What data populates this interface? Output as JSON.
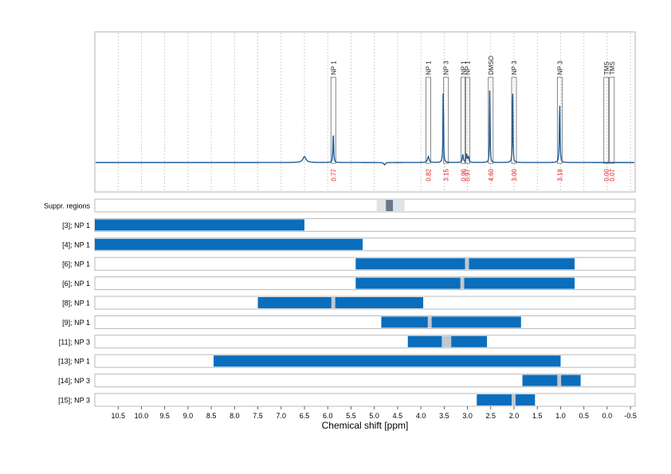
{
  "chart_data": {
    "type": "nmr-spectrum",
    "xlabel": "Chemical shift [ppm]",
    "xlim": [
      11.0,
      -0.6
    ],
    "x_ticks": [
      "10.5",
      "10.0",
      "9.5",
      "9.0",
      "8.5",
      "8.0",
      "7.5",
      "7.0",
      "6.5",
      "6.0",
      "5.5",
      "5.0",
      "4.5",
      "4.0",
      "3.5",
      "3.0",
      "2.5",
      "2.0",
      "1.5",
      "1.0",
      "0.5",
      "0.0",
      "-0.5"
    ],
    "colors": {
      "spectrum": "#1f5f99",
      "bar": "#0a6ebd",
      "integral_label": "#e8191a",
      "gap": "#c0c8d0",
      "grid": "#c8c8c8"
    },
    "spectrum_peaks": [
      {
        "x": 6.5,
        "h": 0.05,
        "w": 0.04
      },
      {
        "x": 5.88,
        "h": 0.28,
        "w": 0.008
      },
      {
        "x": 3.84,
        "h": 0.05,
        "w": 0.02
      },
      {
        "x": 3.52,
        "h": 0.75,
        "w": 0.006
      },
      {
        "x": 3.1,
        "h": 0.07,
        "w": 0.012
      },
      {
        "x": 3.02,
        "h": 0.07,
        "w": 0.012
      },
      {
        "x": 2.98,
        "h": 0.05,
        "w": 0.012
      },
      {
        "x": 2.52,
        "h": 0.7,
        "w": 0.006
      },
      {
        "x": 2.03,
        "h": 0.8,
        "w": 0.006
      },
      {
        "x": 1.02,
        "h": 0.55,
        "w": 0.008
      },
      {
        "x": 4.78,
        "h": -0.02,
        "w": 0.02
      }
    ],
    "peak_annotations": [
      {
        "label": "NP 1",
        "x": 5.88,
        "integral": "0.77"
      },
      {
        "label": "NP 1",
        "x": 3.84,
        "integral": "0.82"
      },
      {
        "label": "NP 3",
        "x": 3.46,
        "integral": "3.15"
      },
      {
        "label": "NP 1",
        "x": 3.09,
        "integral": "0.96"
      },
      {
        "label": "NP 1",
        "x": 3.0,
        "integral": "0.97"
      },
      {
        "label": "DMSO",
        "x": 2.5,
        "integral": "4.60"
      },
      {
        "label": "NP 3",
        "x": 2.0,
        "integral": "3.00"
      },
      {
        "label": "NP 3",
        "x": 1.02,
        "integral": "3.18"
      },
      {
        "label": "TMS",
        "x": 0.02,
        "integral": "0.00"
      },
      {
        "label": "TMS",
        "x": -0.1,
        "integral": "0.07"
      }
    ],
    "suppression": {
      "label": "Suppr. regions",
      "outer": [
        4.95,
        4.35
      ],
      "inner": [
        4.75,
        4.6
      ]
    },
    "rows": [
      {
        "label": "[3]; NP 1",
        "segments": [
          [
            11.0,
            6.5
          ]
        ]
      },
      {
        "label": "[4]; NP 1",
        "segments": [
          [
            11.0,
            5.25
          ]
        ]
      },
      {
        "label": "[6]; NP 1",
        "segments": [
          [
            5.4,
            3.05
          ],
          [
            2.97,
            0.7
          ]
        ]
      },
      {
        "label": "[6]; NP 1",
        "segments": [
          [
            5.4,
            3.15
          ],
          [
            3.07,
            0.7
          ]
        ]
      },
      {
        "label": "[8]; NP 1",
        "segments": [
          [
            7.5,
            5.92
          ],
          [
            5.84,
            3.95
          ]
        ]
      },
      {
        "label": "[9]; NP 1",
        "segments": [
          [
            4.85,
            3.85
          ],
          [
            3.77,
            1.85
          ]
        ]
      },
      {
        "label": "[11]; NP 3",
        "segments": [
          [
            4.28,
            3.55
          ],
          [
            3.35,
            2.58
          ]
        ]
      },
      {
        "label": "[13]; NP 1",
        "segments": [
          [
            8.45,
            1.0
          ]
        ]
      },
      {
        "label": "[14]; NP 3",
        "segments": [
          [
            1.82,
            1.07
          ],
          [
            0.99,
            0.57
          ]
        ]
      },
      {
        "label": "[15]; NP 3",
        "segments": [
          [
            2.8,
            2.05
          ],
          [
            1.97,
            1.55
          ]
        ]
      }
    ]
  }
}
